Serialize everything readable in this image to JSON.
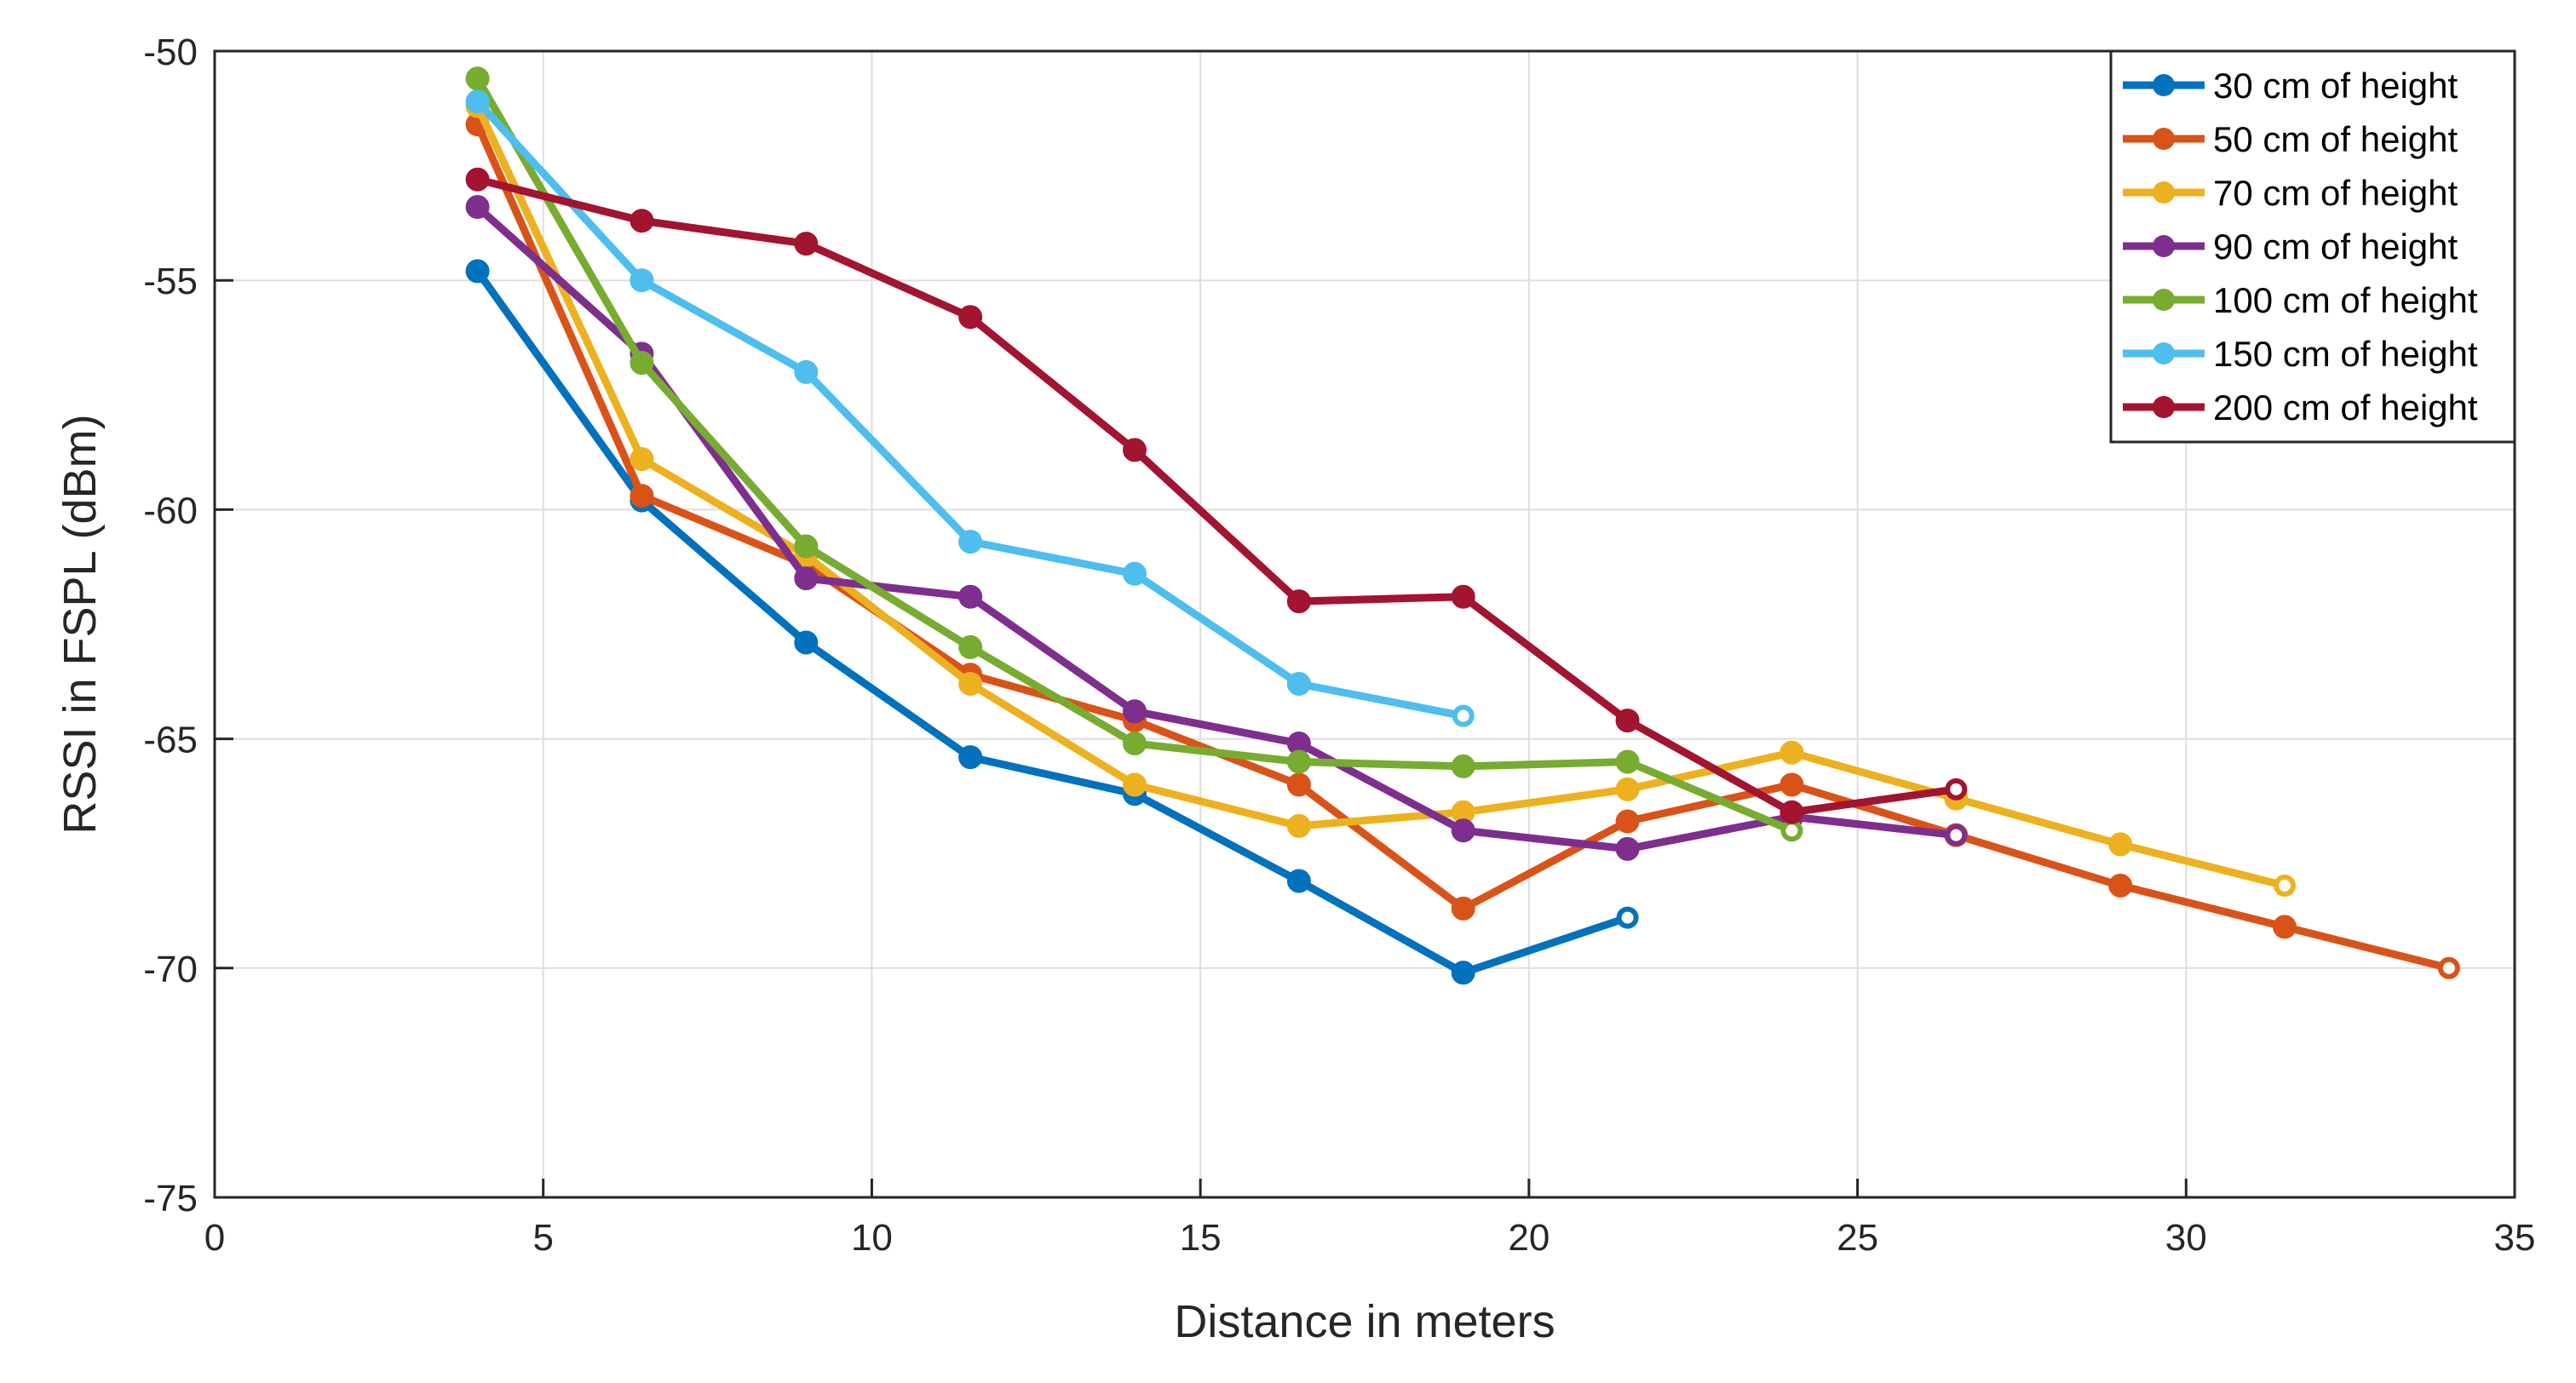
{
  "chart_data": {
    "type": "line",
    "title": "",
    "xlabel": "Distance in meters",
    "ylabel": "RSSI in FSPL (dBm)",
    "xlim": [
      0,
      35
    ],
    "ylim": [
      -75,
      -50
    ],
    "xticks": [
      0,
      5,
      10,
      15,
      20,
      25,
      30,
      35
    ],
    "yticks": [
      -75,
      -70,
      -65,
      -60,
      -55,
      -50
    ],
    "grid": true,
    "legend_position": "top-right",
    "series": [
      {
        "name": "30 cm of height",
        "color": "#0072BD",
        "x": [
          4,
          6.5,
          9,
          11.5,
          14,
          16.5,
          19,
          21.5
        ],
        "y": [
          -54.8,
          -59.8,
          -62.9,
          -65.4,
          -66.2,
          -68.1,
          -70.1,
          -68.9
        ]
      },
      {
        "name": "50 cm of height",
        "color": "#D95319",
        "x": [
          4,
          6.5,
          9,
          11.5,
          14,
          16.5,
          19,
          21.5,
          24,
          26.5,
          29,
          31.5,
          34
        ],
        "y": [
          -51.6,
          -59.7,
          -61.2,
          -63.6,
          -64.6,
          -66.0,
          -68.7,
          -66.8,
          -66.0,
          -67.1,
          -68.2,
          -69.1,
          -70.0
        ]
      },
      {
        "name": "70 cm of height",
        "color": "#EDB120",
        "x": [
          4,
          6.5,
          9,
          11.5,
          14,
          16.5,
          19,
          21.5,
          24,
          26.5,
          29,
          31.5
        ],
        "y": [
          -51.2,
          -58.9,
          -61.0,
          -63.8,
          -66.0,
          -66.9,
          -66.6,
          -66.1,
          -65.3,
          -66.3,
          -67.3,
          -68.2
        ]
      },
      {
        "name": "90 cm of height",
        "color": "#7E2F8E",
        "x": [
          4,
          6.5,
          9,
          11.5,
          14,
          16.5,
          19,
          21.5,
          24,
          26.5
        ],
        "y": [
          -53.4,
          -56.6,
          -61.5,
          -61.9,
          -64.4,
          -65.1,
          -67.0,
          -67.4,
          -66.7,
          -67.1
        ]
      },
      {
        "name": "100 cm of height",
        "color": "#77AC30",
        "x": [
          4,
          6.5,
          9,
          11.5,
          14,
          16.5,
          19,
          21.5,
          24
        ],
        "y": [
          -50.6,
          -56.8,
          -60.8,
          -63.0,
          -65.1,
          -65.5,
          -65.6,
          -65.5,
          -67.0
        ]
      },
      {
        "name": "150 cm of height",
        "color": "#4DBEEE",
        "x": [
          4,
          6.5,
          9,
          11.5,
          14,
          16.5,
          19
        ],
        "y": [
          -51.1,
          -55.0,
          -57.0,
          -60.7,
          -61.4,
          -63.8,
          -64.5
        ]
      },
      {
        "name": "200 cm of height",
        "color": "#A2142F",
        "x": [
          4,
          6.5,
          9,
          11.5,
          14,
          16.5,
          19,
          21.5,
          24,
          26.5
        ],
        "y": [
          -52.8,
          -53.7,
          -54.2,
          -55.8,
          -58.7,
          -62.0,
          -61.9,
          -64.6,
          -66.6,
          -66.1
        ]
      }
    ]
  }
}
